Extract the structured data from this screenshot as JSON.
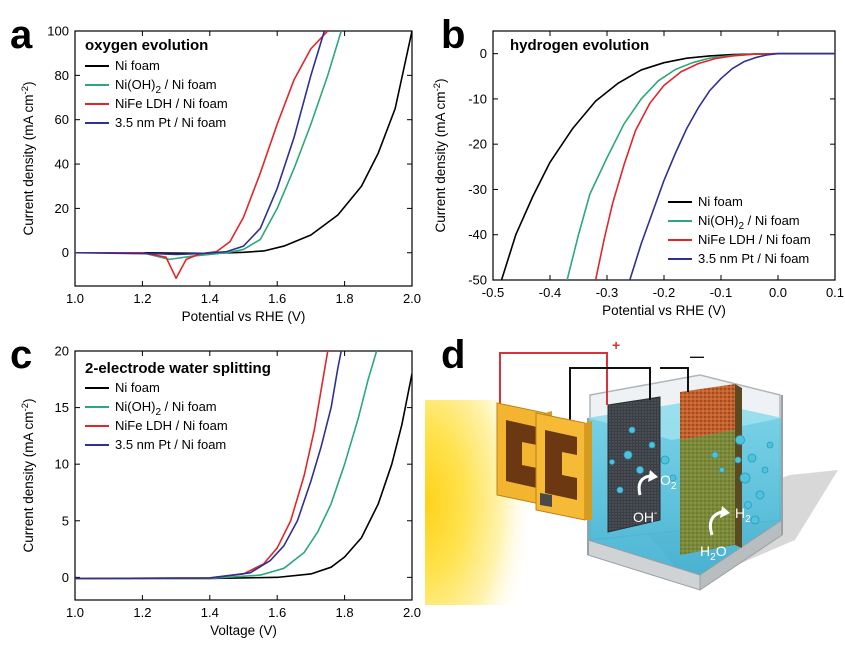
{
  "panel_labels": {
    "a": "a",
    "b": "b",
    "c": "c",
    "d": "d"
  },
  "chart_data": [
    {
      "type": "line",
      "panel": "a",
      "title": "oxygen evolution",
      "xlabel": "Potential vs RHE (V)",
      "ylabel": "Current density  (mA cm",
      "ylabel_sup": "-2",
      "ylabel_end": ")",
      "xlim": [
        1.0,
        2.0
      ],
      "ylim": [
        -15,
        100
      ],
      "xticks": [
        "1.0",
        "1.2",
        "1.4",
        "1.6",
        "1.8",
        "2.0"
      ],
      "xtick_values": [
        1.0,
        1.2,
        1.4,
        1.6,
        1.8,
        2.0
      ],
      "yticks": [
        "0",
        "20",
        "40",
        "60",
        "80",
        "100"
      ],
      "ytick_values": [
        0,
        20,
        40,
        60,
        80,
        100
      ],
      "legend_position": "top-left",
      "series": [
        {
          "name": "Ni foam",
          "color": "#000000",
          "x": [
            1.0,
            1.2,
            1.4,
            1.5,
            1.56,
            1.62,
            1.7,
            1.78,
            1.85,
            1.9,
            1.95,
            2.0
          ],
          "y": [
            0,
            0,
            -0.3,
            0.2,
            0.8,
            3,
            8,
            17,
            30,
            45,
            65,
            100
          ]
        },
        {
          "name": "Ni(OH)2 / Ni foam",
          "color": "#2ca87a",
          "x": [
            1.0,
            1.2,
            1.28,
            1.35,
            1.45,
            1.5,
            1.55,
            1.6,
            1.65,
            1.7,
            1.75,
            1.79
          ],
          "y": [
            0,
            0,
            -3,
            -1.5,
            0,
            1.5,
            6,
            20,
            38,
            58,
            80,
            100
          ]
        },
        {
          "name": "NiFe LDH / Ni foam",
          "color": "#e0262b",
          "x": [
            1.0,
            1.2,
            1.27,
            1.3,
            1.33,
            1.37,
            1.42,
            1.46,
            1.5,
            1.55,
            1.6,
            1.65,
            1.7,
            1.75
          ],
          "y": [
            0,
            0,
            -2,
            -11.5,
            -3,
            -0.5,
            0.5,
            5,
            16,
            36,
            58,
            78,
            92,
            100
          ]
        },
        {
          "name": "3.5 nm Pt / Ni foam",
          "color": "#2e3192",
          "x": [
            1.0,
            1.25,
            1.3,
            1.38,
            1.45,
            1.5,
            1.55,
            1.6,
            1.65,
            1.7,
            1.74
          ],
          "y": [
            0,
            -0.5,
            -0.8,
            -0.3,
            0.5,
            3,
            11,
            29,
            52,
            80,
            100
          ]
        }
      ]
    },
    {
      "type": "line",
      "panel": "b",
      "title": "hydrogen evolution",
      "xlabel": "Potential vs RHE (V)",
      "ylabel": "Current density  (mA cm",
      "ylabel_sup": "-2",
      "ylabel_end": ")",
      "xlim": [
        -0.5,
        0.1
      ],
      "ylim": [
        -50,
        5
      ],
      "xticks": [
        "-0.5",
        "-0.4",
        "-0.3",
        "-0.2",
        "-0.1",
        "0.0",
        "0.1"
      ],
      "xtick_values": [
        -0.5,
        -0.4,
        -0.3,
        -0.2,
        -0.1,
        0.0,
        0.1
      ],
      "yticks": [
        "0",
        "-10",
        "-20",
        "-30",
        "-40",
        "-50"
      ],
      "ytick_values": [
        0,
        -10,
        -20,
        -30,
        -40,
        -50
      ],
      "legend_position": "bottom-right",
      "series": [
        {
          "name": "Ni foam",
          "color": "#000000",
          "x": [
            -0.485,
            -0.46,
            -0.43,
            -0.4,
            -0.36,
            -0.32,
            -0.28,
            -0.24,
            -0.2,
            -0.16,
            -0.12,
            -0.08,
            -0.04,
            0.0,
            0.1
          ],
          "y": [
            -50,
            -40,
            -31.5,
            -24,
            -16.5,
            -10.5,
            -6.5,
            -3.6,
            -2,
            -1,
            -0.5,
            -0.2,
            -0.1,
            0,
            0
          ]
        },
        {
          "name": "Ni(OH)2 / Ni foam",
          "color": "#2ca87a",
          "x": [
            -0.37,
            -0.35,
            -0.33,
            -0.3,
            -0.27,
            -0.24,
            -0.21,
            -0.18,
            -0.15,
            -0.12,
            -0.08,
            -0.04,
            0.0,
            0.1
          ],
          "y": [
            -50,
            -40,
            -31,
            -23,
            -15.5,
            -10,
            -6,
            -3.5,
            -2,
            -1,
            -0.4,
            -0.1,
            0,
            0
          ]
        },
        {
          "name": "NiFe LDH / Ni foam",
          "color": "#e0262b",
          "x": [
            -0.32,
            -0.305,
            -0.29,
            -0.27,
            -0.25,
            -0.225,
            -0.2,
            -0.17,
            -0.14,
            -0.11,
            -0.08,
            -0.04,
            0.0,
            0.1
          ],
          "y": [
            -50,
            -41,
            -33,
            -24.5,
            -17,
            -11,
            -7,
            -4,
            -2.2,
            -1.1,
            -0.5,
            -0.1,
            0,
            0
          ]
        },
        {
          "name": "3.5 nm Pt / Ni foam",
          "color": "#2e3192",
          "x": [
            -0.26,
            -0.24,
            -0.22,
            -0.2,
            -0.18,
            -0.16,
            -0.14,
            -0.12,
            -0.1,
            -0.08,
            -0.06,
            -0.04,
            -0.02,
            0.0,
            0.02,
            0.1
          ],
          "y": [
            -50,
            -42,
            -35,
            -28,
            -22,
            -16.5,
            -12,
            -8.2,
            -5.5,
            -3.3,
            -1.8,
            -0.9,
            -0.3,
            0,
            0,
            0
          ]
        }
      ]
    },
    {
      "type": "line",
      "panel": "c",
      "title": "2-electrode water splitting",
      "xlabel": "Voltage (V)",
      "ylabel": "Current density  (mA cm",
      "ylabel_sup": "-2",
      "ylabel_end": ")",
      "xlim": [
        1.0,
        2.0
      ],
      "ylim": [
        -2,
        20
      ],
      "xticks": [
        "1.0",
        "1.2",
        "1.4",
        "1.6",
        "1.8",
        "2.0"
      ],
      "xtick_values": [
        1.0,
        1.2,
        1.4,
        1.6,
        1.8,
        2.0
      ],
      "yticks": [
        "0",
        "5",
        "10",
        "15",
        "20"
      ],
      "ytick_values": [
        0,
        5,
        10,
        15,
        20
      ],
      "legend_position": "top-left",
      "series": [
        {
          "name": "Ni foam",
          "color": "#000000",
          "x": [
            1.0,
            1.4,
            1.6,
            1.7,
            1.76,
            1.8,
            1.85,
            1.9,
            1.94,
            1.97,
            2.0
          ],
          "y": [
            -0.1,
            -0.1,
            0,
            0.3,
            0.9,
            1.8,
            3.5,
            6.5,
            10,
            13.5,
            18
          ]
        },
        {
          "name": "Ni(OH)2 / Ni foam",
          "color": "#2ca87a",
          "x": [
            1.0,
            1.4,
            1.55,
            1.62,
            1.68,
            1.72,
            1.76,
            1.8,
            1.84,
            1.87,
            1.895
          ],
          "y": [
            -0.1,
            -0.1,
            0.2,
            0.8,
            2.2,
            4,
            6.5,
            10,
            14,
            17.5,
            20
          ]
        },
        {
          "name": "NiFe LDH / Ni foam",
          "color": "#e0262b",
          "x": [
            1.0,
            1.4,
            1.5,
            1.56,
            1.6,
            1.64,
            1.68,
            1.71,
            1.73,
            1.75
          ],
          "y": [
            -0.1,
            -0.05,
            0.3,
            1.2,
            2.6,
            5,
            9,
            13,
            16.5,
            20
          ]
        },
        {
          "name": "3.5 nm Pt / Ni foam",
          "color": "#2e3192",
          "x": [
            1.0,
            1.4,
            1.52,
            1.58,
            1.62,
            1.66,
            1.7,
            1.73,
            1.76,
            1.78,
            1.79
          ],
          "y": [
            -0.1,
            -0.05,
            0.4,
            1.5,
            2.8,
            5,
            8.5,
            11.5,
            15,
            18.5,
            20
          ]
        }
      ]
    }
  ],
  "schematic": {
    "plus": "+",
    "minus": "—",
    "o2": "O",
    "o2_sub": "2",
    "oh": "OH",
    "oh_sup": "-",
    "h2": "H",
    "h2_sub": "2",
    "h2o": "H",
    "h2o_sub": "2",
    "h2o_end": "O"
  }
}
